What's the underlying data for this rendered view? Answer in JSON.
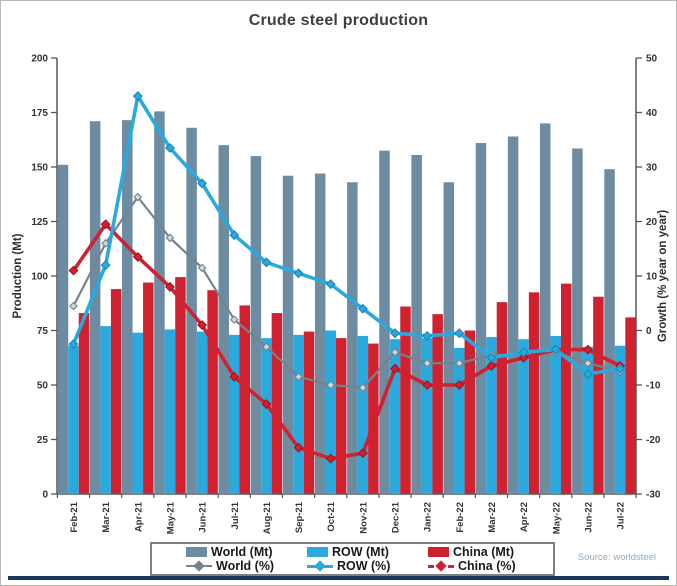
{
  "title": "Crude steel production",
  "source_note": "Source: worldsteel",
  "legend": {
    "items": [
      {
        "label": "World (Mt)"
      },
      {
        "label": "ROW (Mt)"
      },
      {
        "label": "China (Mt)"
      },
      {
        "label": "World (%)"
      },
      {
        "label": "ROW (%)"
      },
      {
        "label": "China (%)"
      }
    ]
  },
  "colors": {
    "world_bar": "#6d8ba1",
    "row_bar": "#29a9dd",
    "china_bar": "#cf2130",
    "world_line": "#76838e",
    "world_marker_fill": "#d2d7db",
    "row_line": "#29a9dd",
    "china_line": "#cf2130",
    "axis_line": "#55565a",
    "tick_text": "#333333",
    "title_text": "#3f3f3f",
    "source_text": "#8fadc0",
    "legend_border": "#7f7f7f",
    "bottom_rule": "#17375e",
    "frame_border": "#b7b7b7"
  },
  "chart_data": {
    "type": "combo: grouped bar (left axis, Mt) + line (right axis, % growth)",
    "categories": [
      "Feb-21",
      "Mar-21",
      "Apr-21",
      "May-21",
      "Jun-21",
      "Jul-21",
      "Aug-21",
      "Sep-21",
      "Oct-21",
      "Nov-21",
      "Dec-21",
      "Jan-22",
      "Feb-22",
      "Mar-22",
      "Apr-22",
      "May-22",
      "Jun-22",
      "Jul-22"
    ],
    "series": [
      {
        "name": "World (Mt)",
        "type": "bar",
        "axis": "left",
        "values": [
          151,
          171,
          171.5,
          175.5,
          168,
          160,
          155,
          146,
          147,
          143,
          157.5,
          155.5,
          143,
          161,
          164,
          170,
          158.5,
          149
        ]
      },
      {
        "name": "ROW (Mt)",
        "type": "bar",
        "axis": "left",
        "values": [
          68,
          77,
          74,
          75.5,
          74.5,
          73,
          71.5,
          73,
          75,
          72.5,
          71,
          71.5,
          67,
          72,
          71,
          72.5,
          67.5,
          68
        ]
      },
      {
        "name": "China (Mt)",
        "type": "bar",
        "axis": "left",
        "values": [
          83,
          94,
          97,
          99.5,
          93.5,
          86.5,
          83,
          74.5,
          71.5,
          69,
          86,
          82.5,
          75,
          88,
          92.5,
          96.5,
          90.5,
          81
        ]
      },
      {
        "name": "World (%)",
        "type": "line",
        "axis": "right",
        "values": [
          4.5,
          16,
          24.5,
          17,
          11.5,
          2,
          -3,
          -8.5,
          -10,
          -10.5,
          -4,
          -6,
          -6,
          -4.5,
          -4.5,
          -4,
          -6,
          -7.5
        ]
      },
      {
        "name": "ROW (%)",
        "type": "line",
        "axis": "right",
        "values": [
          -2.5,
          12,
          43,
          33.5,
          27,
          17.5,
          12.5,
          10.5,
          8.5,
          4,
          -0.5,
          -1,
          -0.5,
          -5,
          -4,
          -3.5,
          -8,
          -7
        ]
      },
      {
        "name": "China (%)",
        "type": "line",
        "axis": "right",
        "values": [
          11,
          19.5,
          13.5,
          8,
          1,
          -8.5,
          -13.5,
          -21.5,
          -23.5,
          -22.5,
          -7,
          -10,
          -10,
          -6.5,
          -5,
          -3.5,
          -3.5,
          -6.5
        ]
      }
    ],
    "left_axis": {
      "label": "Production (Mt)",
      "min": 0,
      "max": 200,
      "ticks": [
        0,
        25,
        50,
        75,
        100,
        125,
        150,
        175,
        200
      ]
    },
    "right_axis": {
      "label": "Growth (% year on year)",
      "min": -30,
      "max": 50,
      "ticks": [
        -30,
        -20,
        -10,
        0,
        10,
        20,
        30,
        40,
        50
      ]
    },
    "legend_position": "bottom",
    "grid": false
  }
}
